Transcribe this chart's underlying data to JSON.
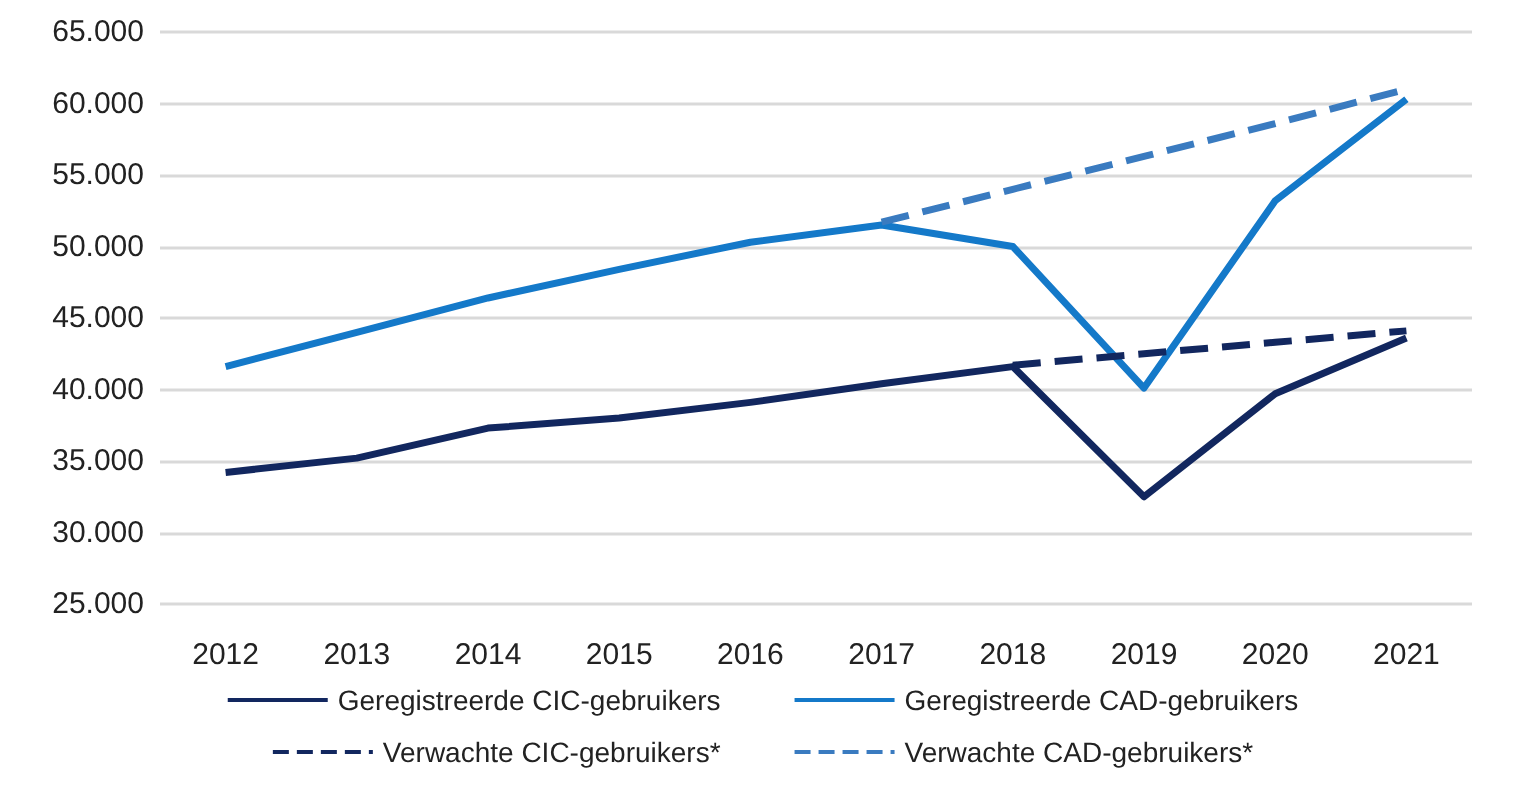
{
  "chart_data": {
    "type": "line",
    "categories": [
      "2012",
      "2013",
      "2014",
      "2015",
      "2016",
      "2017",
      "2018",
      "2019",
      "2020",
      "2021"
    ],
    "series": [
      {
        "name": "Geregistreerde CIC-gebruikers",
        "color": "#12275f",
        "line_style": "solid",
        "values": [
          34200,
          35200,
          37300,
          38000,
          39100,
          40400,
          41600,
          32500,
          39700,
          43600
        ]
      },
      {
        "name": "Geregistreerde CAD-gebruikers",
        "color": "#1479c9",
        "line_style": "solid",
        "values": [
          41600,
          44000,
          46400,
          48400,
          50300,
          51500,
          50000,
          40100,
          53200,
          60300
        ]
      },
      {
        "name": "Verwachte CIC-gebruikers*",
        "color": "#12275f",
        "line_style": "dashed",
        "values": [
          null,
          null,
          null,
          null,
          null,
          null,
          41700,
          42500,
          43300,
          44100
        ]
      },
      {
        "name": "Verwachte CAD-gebruikers*",
        "color": "#3a7bc0",
        "line_style": "dashed",
        "values": [
          null,
          null,
          null,
          null,
          null,
          51700,
          54000,
          56300,
          58600,
          61000
        ]
      }
    ],
    "ylim": [
      25000,
      65000
    ],
    "yticks": [
      {
        "value": 25000,
        "label": "25.000"
      },
      {
        "value": 30000,
        "label": "30.000"
      },
      {
        "value": 35000,
        "label": "35.000"
      },
      {
        "value": 40000,
        "label": "40.000"
      },
      {
        "value": 45000,
        "label": "45.000"
      },
      {
        "value": 50000,
        "label": "50.000"
      },
      {
        "value": 55000,
        "label": "55.000"
      },
      {
        "value": 60000,
        "label": "60.000"
      },
      {
        "value": 65000,
        "label": "65.000"
      }
    ],
    "grid": "y",
    "legend": "bottom",
    "marker": "none"
  }
}
